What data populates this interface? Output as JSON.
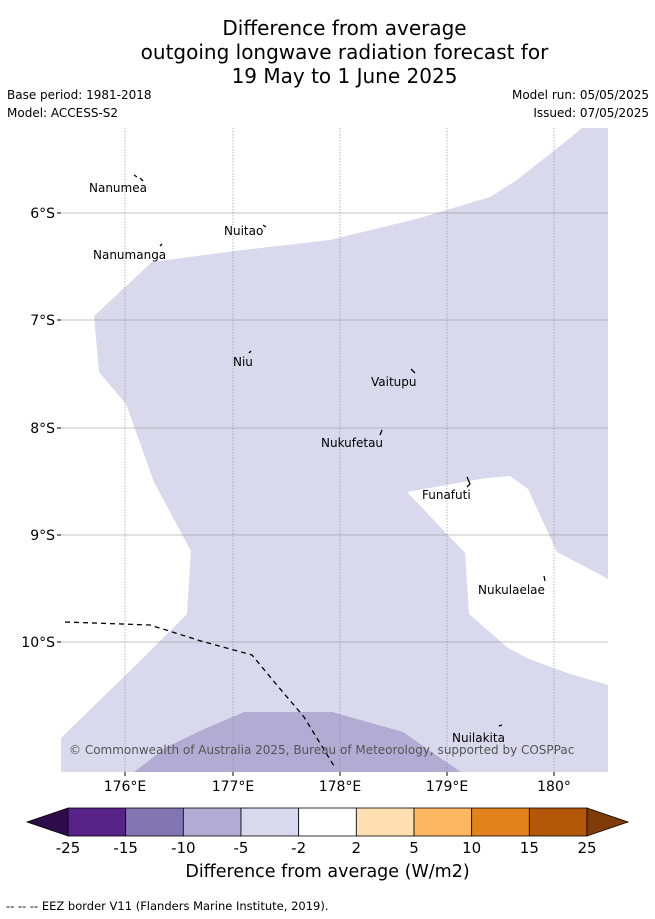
{
  "title": {
    "line1": "Difference from average",
    "line2": "outgoing longwave radiation forecast for",
    "line3": "19 May to 1 June 2025"
  },
  "meta": {
    "base_period": "Base period: 1981-2018",
    "model": "Model: ACCESS-S2",
    "model_run": "Model run: 05/05/2025",
    "issued": "Issued: 07/05/2025"
  },
  "map": {
    "lon_ticks": [
      "176°E",
      "177°E",
      "178°E",
      "179°E",
      "180°"
    ],
    "lat_ticks": [
      "6°S",
      "7°S",
      "8°S",
      "9°S",
      "10°S"
    ],
    "places": [
      "Nanumea",
      "Nuitao",
      "Nanumanga",
      "Niu",
      "Vaitupu",
      "Nukufetau",
      "Funafuti",
      "Nukulaelae",
      "Nuilakita"
    ],
    "credit": "© Commonwealth of Australia 2025, Bureau of Meteorology, supported by COSPPac"
  },
  "colorbar": {
    "title": "Difference from average (W/m2)",
    "ticks": [
      "-25",
      "-15",
      "-10",
      "-5",
      "-2",
      "2",
      "5",
      "10",
      "15",
      "25"
    ],
    "colors": [
      "#582389",
      "#8375b0",
      "#b2abd3",
      "#d8d9ec",
      "#ffffff",
      "#fedfb1",
      "#fdb762",
      "#e1821c",
      "#b35808"
    ],
    "under_color": "#2e0b4b",
    "over_color": "#7f3b08"
  },
  "footnote": "-- -- -- EEZ border V11 (Flanders Marine Institute, 2019)."
}
